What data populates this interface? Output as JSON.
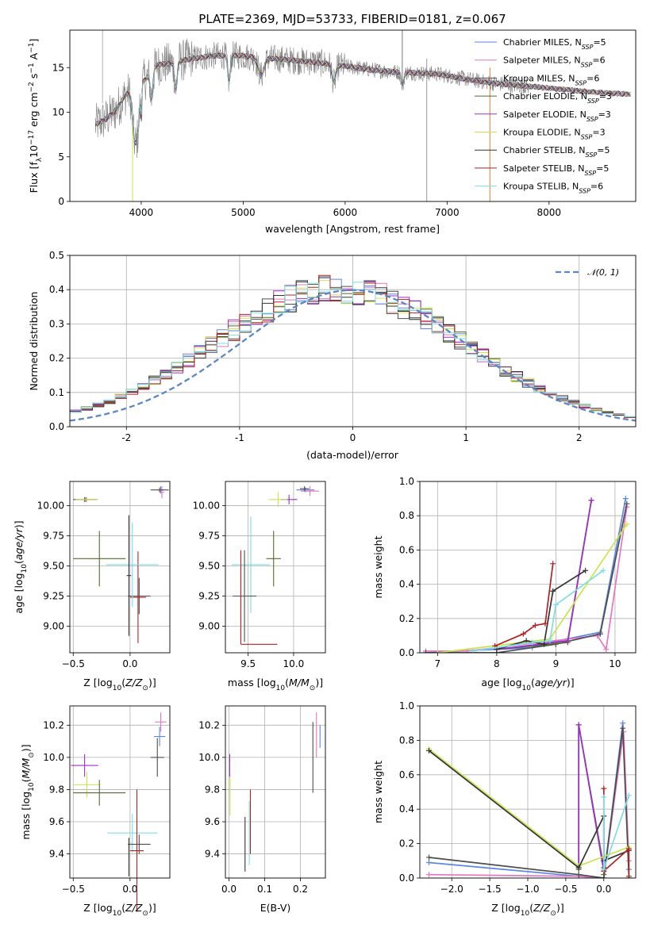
{
  "figure_title": "PLATE=2369, MJD=53733, FIBERID=0181, z=0.067",
  "colors": [
    "#5b86e5",
    "#e377c2",
    "#4d4d4d",
    "#556b2f",
    "#9b30c8",
    "#c8e64c",
    "#333333",
    "#b22222",
    "#7fdde6"
  ],
  "chart_data": [
    {
      "id": "spectrum",
      "type": "line",
      "title": "PLATE=2369, MJD=53733, FIBERID=0181, z=0.067",
      "xlabel": "wavelength [Angstrom, rest frame]",
      "ylabel": "Flux [fλ10⁻¹⁷ erg cm⁻² s⁻¹ A⁻¹]",
      "xlim": [
        3300,
        8850
      ],
      "ylim": [
        0,
        19.2
      ],
      "xticks": [
        4000,
        5000,
        6000,
        7000,
        8000
      ],
      "yticks": [
        0,
        5,
        10,
        15
      ],
      "grid": false,
      "legend_position": "top-right",
      "series": [
        {
          "name": "Chabrier MILES, N_SSP=5",
          "label": "Chabrier MILES, N",
          "sub": "SSP",
          "suffix": "=5"
        },
        {
          "name": "Salpeter MILES, N_SSP=6",
          "label": "Salpeter MILES, N",
          "sub": "SSP",
          "suffix": "=6"
        },
        {
          "name": "Kroupa MILES, N_SSP=6",
          "label": "Kroupa MILES, N",
          "sub": "SSP",
          "suffix": "=6"
        },
        {
          "name": "Chabrier ELODIE, N_SSP=3",
          "label": "Chabrier ELODIE, N",
          "sub": "SSP",
          "suffix": "=3"
        },
        {
          "name": "Salpeter ELODIE, N_SSP=3",
          "label": "Salpeter ELODIE, N",
          "sub": "SSP",
          "suffix": "=3"
        },
        {
          "name": "Kroupa ELODIE, N_SSP=3",
          "label": "Kroupa ELODIE, N",
          "sub": "SSP",
          "suffix": "=3"
        },
        {
          "name": "Chabrier STELIB, N_SSP=5",
          "label": "Chabrier STELIB, N",
          "sub": "SSP",
          "suffix": "=5"
        },
        {
          "name": "Salpeter STELIB, N_SSP=5",
          "label": "Salpeter STELIB, N",
          "sub": "SSP",
          "suffix": "=5"
        },
        {
          "name": "Kroupa STELIB, N_SSP=6",
          "label": "Kroupa STELIB, N",
          "sub": "SSP",
          "suffix": "=6"
        }
      ],
      "continuum": {
        "x": [
          3550,
          3650,
          3750,
          3850,
          3950,
          4050,
          4150,
          4300,
          4400,
          4500,
          4700,
          4900,
          5100,
          5300,
          5500,
          5700,
          5900,
          6100,
          6300,
          6500,
          6700,
          6900,
          7100,
          7300,
          7500,
          7700,
          7900,
          8100,
          8300,
          8500,
          8800
        ],
        "y": [
          8.6,
          9.2,
          10.2,
          12.0,
          13.0,
          13.8,
          15.3,
          15.5,
          15.8,
          16.0,
          16.3,
          16.4,
          16.2,
          16.0,
          15.8,
          15.6,
          15.3,
          15.0,
          14.7,
          14.5,
          14.4,
          14.3,
          13.9,
          13.5,
          13.2,
          13.0,
          12.8,
          12.6,
          12.4,
          12.2,
          12.0
        ]
      }
    },
    {
      "id": "residuals",
      "type": "line",
      "xlabel": "(data-model)/error",
      "ylabel": "Normed distribution",
      "xlim": [
        -2.5,
        2.5
      ],
      "ylim": [
        0,
        0.5
      ],
      "xticks": [
        -2,
        -1,
        0,
        1,
        2
      ],
      "yticks": [
        0.0,
        0.1,
        0.2,
        0.3,
        0.4,
        0.5
      ],
      "grid": true,
      "legend_position": "top-right",
      "reference_curve": {
        "name": "N(0,1)",
        "label": "𝒩(0, 1)",
        "mu": 0,
        "sigma": 1
      },
      "bin_width": 0.1
    },
    {
      "id": "age-vs-Z",
      "type": "scatter",
      "xlabel": "Z [log₁₀(Z/Z⊙)]",
      "ylabel": "age  [log₁₀(age/yr)]",
      "xlim": [
        -0.53,
        0.35
      ],
      "ylim": [
        8.78,
        10.2
      ],
      "xticks": [
        -0.5,
        0.0
      ],
      "xticklabels": [
        "−0.5",
        "0.0"
      ],
      "yticks": [
        9.0,
        9.25,
        9.5,
        9.75,
        10.0
      ],
      "yticklabels": [
        "9.00",
        "9.25",
        "9.50",
        "9.75",
        "10.00"
      ],
      "grid": true,
      "points": [
        {
          "series": 0,
          "x": 0.27,
          "xerr": 0.03,
          "y": 10.13,
          "yerr": 0.03
        },
        {
          "series": 1,
          "x": 0.28,
          "xerr": 0.02,
          "y": 10.11,
          "yerr": 0.05
        },
        {
          "series": 2,
          "x": 0.26,
          "xerr": 0.08,
          "y": 10.13,
          "yerr": 0.02
        },
        {
          "series": 3,
          "x": -0.4,
          "xerr": 0.1,
          "y": 10.05,
          "yerr": 0.02
        },
        {
          "series": 4,
          "x": -0.39,
          "xerr": 0.1,
          "y": 10.05,
          "yerr": 0.02
        },
        {
          "series": 5,
          "x": -0.38,
          "xerr": 0.1,
          "y": 10.05,
          "yerr": 0.02
        },
        {
          "series": 3,
          "x": -0.27,
          "xerr": 0.23,
          "y": 9.56,
          "yerr": 0.23
        },
        {
          "series": 2,
          "x": 0.08,
          "xerr": 0.1,
          "y": 9.25,
          "yerr": 0.15
        },
        {
          "series": 7,
          "x": 0.07,
          "xerr": 0.07,
          "y": 9.24,
          "yerr": 0.38
        },
        {
          "series": 8,
          "x": 0.02,
          "xerr": 0.23,
          "y": 9.51,
          "yerr": 0.35
        },
        {
          "series": 6,
          "x": -0.01,
          "xerr": 0.02,
          "y": 9.42,
          "yerr": 0.5
        }
      ]
    },
    {
      "id": "age-vs-mass",
      "type": "scatter",
      "xlabel": "mass [log₁₀(M/M⊙)]",
      "ylabel": "",
      "xlim": [
        9.25,
        10.35
      ],
      "ylim": [
        8.78,
        10.2
      ],
      "xticks": [
        9.5,
        10.0
      ],
      "xticklabels": [
        "9.5",
        "10.0"
      ],
      "yticks": [
        9.0,
        9.25,
        9.5,
        9.75,
        10.0
      ],
      "yticklabels": [
        "9.00",
        "9.25",
        "9.50",
        "9.75",
        "10.00"
      ],
      "grid": true,
      "points": [
        {
          "series": 0,
          "x": 10.13,
          "xerr": 0.1,
          "y": 10.13,
          "yerr": 0.02
        },
        {
          "series": 1,
          "x": 10.18,
          "xerr": 0.1,
          "y": 10.12,
          "yerr": 0.04
        },
        {
          "series": 2,
          "x": 10.12,
          "xerr": 0.05,
          "y": 10.14,
          "yerr": 0.02
        },
        {
          "series": 4,
          "x": 9.95,
          "xerr": 0.09,
          "y": 10.05,
          "yerr": 0.04
        },
        {
          "series": 5,
          "x": 9.83,
          "xerr": 0.1,
          "y": 10.05,
          "yerr": 0.06
        },
        {
          "series": 8,
          "x": 9.53,
          "xerr": 0.21,
          "y": 9.51,
          "yerr": 0.4
        },
        {
          "series": 3,
          "x": 9.78,
          "xerr": 0.08,
          "y": 9.56,
          "yerr": 0.23
        },
        {
          "series": 2,
          "x": 9.46,
          "xerr": 0.13,
          "y": 9.25,
          "yerr": 0.38
        },
        {
          "series": 7,
          "x": 9.42,
          "xerr": 0.0,
          "y": 9.24,
          "yerr": 0.39
        },
        {
          "series": 7,
          "x": 9.62,
          "xerr": 0.2,
          "y": 8.85,
          "yerr": 0.0
        }
      ]
    },
    {
      "id": "mass-weight-vs-age",
      "type": "line",
      "xlabel": "age  [log₁₀(age/yr)]",
      "ylabel": "mass weight",
      "xlim": [
        6.7,
        10.35
      ],
      "ylim": [
        0,
        1.0
      ],
      "xticks": [
        7,
        8,
        9,
        10
      ],
      "yticks": [
        0.0,
        0.2,
        0.4,
        0.6,
        0.8,
        1.0
      ],
      "grid": true,
      "series": [
        {
          "series": 0,
          "x": [
            6.8,
            8.6,
            8.9,
            9.75,
            10.18
          ],
          "y": [
            0.0,
            0.03,
            0.06,
            0.12,
            0.9
          ]
        },
        {
          "series": 1,
          "x": [
            6.8,
            7.5,
            9.7,
            9.85,
            10.2
          ],
          "y": [
            0.01,
            0.01,
            0.1,
            0.02,
            0.85
          ]
        },
        {
          "series": 2,
          "x": [
            6.8,
            8.0,
            9.0,
            9.75,
            10.2
          ],
          "y": [
            0.0,
            0.0,
            0.05,
            0.11,
            0.87
          ]
        },
        {
          "series": 3,
          "x": [
            8.0,
            9.2,
            9.6
          ],
          "y": [
            0.02,
            0.06,
            0.89
          ]
        },
        {
          "series": 4,
          "x": [
            8.0,
            9.2,
            9.6
          ],
          "y": [
            0.02,
            0.07,
            0.89
          ]
        },
        {
          "series": 5,
          "x": [
            7.0,
            8.9,
            10.2
          ],
          "y": [
            0.0,
            0.08,
            0.75
          ]
        },
        {
          "series": 6,
          "x": [
            8.0,
            8.5,
            8.8,
            8.95,
            9.5
          ],
          "y": [
            0.02,
            0.07,
            0.05,
            0.36,
            0.48
          ]
        },
        {
          "series": 7,
          "x": [
            7.97,
            8.45,
            8.65,
            8.82,
            8.95
          ],
          "y": [
            0.04,
            0.11,
            0.16,
            0.17,
            0.52
          ]
        },
        {
          "series": 8,
          "x": [
            7.6,
            8.6,
            8.9,
            9.0,
            9.8
          ],
          "y": [
            0.01,
            0.06,
            0.07,
            0.28,
            0.48
          ]
        }
      ]
    },
    {
      "id": "mass-vs-Z",
      "type": "scatter",
      "xlabel": "Z [log₁₀(Z/Z⊙)]",
      "ylabel": "mass [log₁₀(M/M⊙)]",
      "xlim": [
        -0.53,
        0.35
      ],
      "ylim": [
        9.25,
        10.32
      ],
      "xticks": [
        -0.5,
        0.0
      ],
      "xticklabels": [
        "−0.5",
        "0.0"
      ],
      "yticks": [
        9.4,
        9.6,
        9.8,
        10.0,
        10.2
      ],
      "yticklabels": [
        "9.4",
        "9.6",
        "9.8",
        "10.0",
        "10.2"
      ],
      "grid": true,
      "points": [
        {
          "series": 1,
          "x": 0.27,
          "xerr": 0.05,
          "y": 10.22,
          "yerr": 0.06
        },
        {
          "series": 0,
          "x": 0.26,
          "xerr": 0.05,
          "y": 10.13,
          "yerr": 0.06
        },
        {
          "series": 2,
          "x": 0.24,
          "xerr": 0.06,
          "y": 10.0,
          "yerr": 0.12
        },
        {
          "series": 4,
          "x": -0.4,
          "xerr": 0.12,
          "y": 9.95,
          "yerr": 0.07
        },
        {
          "series": 5,
          "x": -0.38,
          "xerr": 0.12,
          "y": 9.83,
          "yerr": 0.08
        },
        {
          "series": 3,
          "x": -0.27,
          "xerr": 0.23,
          "y": 9.78,
          "yerr": 0.08
        },
        {
          "series": 8,
          "x": 0.02,
          "xerr": 0.22,
          "y": 9.53,
          "yerr": 0.12
        },
        {
          "series": 2,
          "x": 0.08,
          "xerr": 0.1,
          "y": 9.46,
          "yerr": 0.06
        },
        {
          "series": 7,
          "x": 0.06,
          "xerr": 0.06,
          "y": 9.42,
          "yerr": 0.38
        },
        {
          "series": 6,
          "x": -0.01,
          "xerr": 0.0,
          "y": 9.38,
          "yerr": 0.12
        }
      ]
    },
    {
      "id": "mass-vs-EBV",
      "type": "scatter",
      "xlabel": "E(B-V)",
      "ylabel": "",
      "xlim": [
        -0.01,
        0.27
      ],
      "ylim": [
        9.25,
        10.32
      ],
      "xticks": [
        0.0,
        0.1,
        0.2
      ],
      "xticklabels": [
        "0.0",
        "0.1",
        "0.2"
      ],
      "yticks": [
        9.4,
        9.6,
        9.8,
        10.0,
        10.2
      ],
      "yticklabels": [
        "9.4",
        "9.6",
        "9.8",
        "10.0",
        "10.2"
      ],
      "grid": true,
      "points": [
        {
          "series": 1,
          "x": 0.245,
          "y": 10.14,
          "yerr": 0.14
        },
        {
          "series": 0,
          "x": 0.255,
          "y": 10.13,
          "yerr": 0.07
        },
        {
          "series": 2,
          "x": 0.235,
          "y": 10.0,
          "yerr": 0.22
        },
        {
          "series": 4,
          "x": 0.002,
          "y": 9.95,
          "yerr": 0.07
        },
        {
          "series": 5,
          "x": 0.003,
          "y": 9.76,
          "yerr": 0.12
        },
        {
          "series": 8,
          "x": 0.057,
          "y": 9.53,
          "yerr": 0.2
        },
        {
          "series": 7,
          "x": 0.06,
          "y": 9.6,
          "yerr": 0.2
        },
        {
          "series": 6,
          "x": 0.045,
          "y": 9.46,
          "yerr": 0.17
        }
      ]
    },
    {
      "id": "mass-weight-vs-Z",
      "type": "line",
      "xlabel": "Z [log₁₀(Z/Z⊙)]",
      "ylabel": "mass weight",
      "xlim": [
        -2.42,
        0.42
      ],
      "ylim": [
        0,
        1.0
      ],
      "xticks": [
        -2.0,
        -1.5,
        -1.0,
        -0.5,
        0.0
      ],
      "xticklabels": [
        "−2.0",
        "−1.5",
        "−1.0",
        "−0.5",
        "0.0"
      ],
      "yticks": [
        0.0,
        0.2,
        0.4,
        0.6,
        0.8,
        1.0
      ],
      "grid": true,
      "series": [
        {
          "series": 0,
          "x": [
            -2.3,
            -0.33,
            0.0,
            0.25,
            0.33
          ],
          "y": [
            0.09,
            0.01,
            0.0,
            0.9,
            0.05
          ]
        },
        {
          "series": 1,
          "x": [
            -2.3,
            -0.33,
            0.0,
            0.26,
            0.33
          ],
          "y": [
            0.02,
            0.01,
            0.0,
            0.85,
            0.1
          ]
        },
        {
          "series": 2,
          "x": [
            -2.3,
            -0.33,
            0.0,
            0.25,
            0.33
          ],
          "y": [
            0.12,
            0.02,
            0.0,
            0.87,
            0.01
          ]
        },
        {
          "series": 3,
          "x": [
            -0.33,
            -0.33,
            0.0,
            0.0
          ],
          "y": [
            0.05,
            0.89,
            0.06,
            0.02
          ]
        },
        {
          "series": 4,
          "x": [
            -0.33,
            -0.33,
            0.0
          ],
          "y": [
            0.07,
            0.89,
            0.04
          ]
        },
        {
          "series": 5,
          "x": [
            -2.3,
            -0.33,
            0.33
          ],
          "y": [
            0.75,
            0.07,
            0.18
          ]
        },
        {
          "series": 6,
          "x": [
            -2.3,
            -0.33,
            0.0,
            0.0,
            0.33
          ],
          "y": [
            0.74,
            0.06,
            0.36,
            0.1,
            0.16
          ]
        },
        {
          "series": 7,
          "x": [
            0.0,
            0.0,
            0.33,
            0.33
          ],
          "y": [
            0.52,
            0.04,
            0.17,
            0.0
          ]
        },
        {
          "series": 8,
          "x": [
            0.0,
            0.0,
            0.33
          ],
          "y": [
            0.47,
            0.05,
            0.48
          ]
        }
      ]
    }
  ]
}
